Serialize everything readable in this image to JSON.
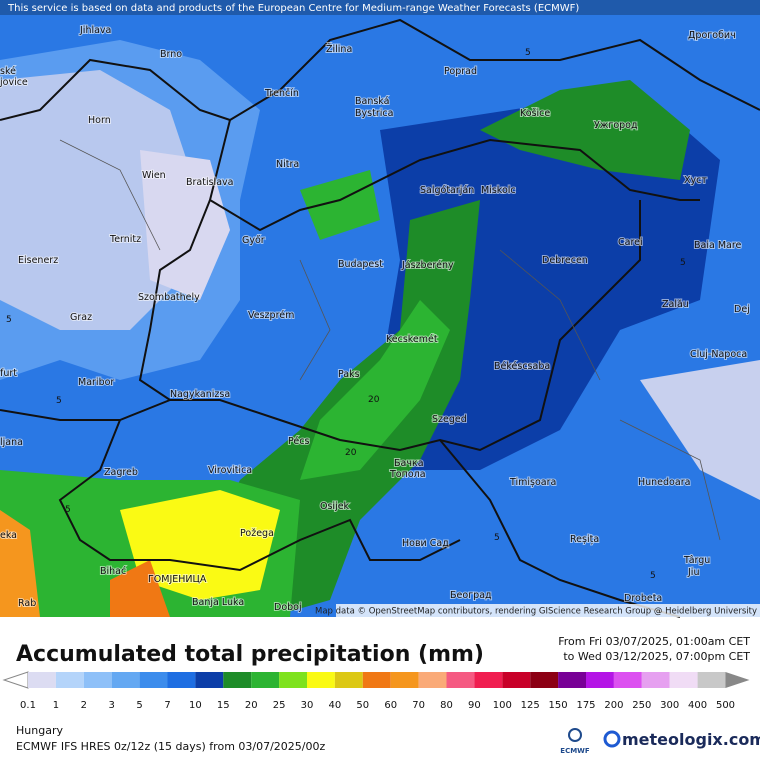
{
  "header": {
    "notice": "This service is based on data and products of the European Centre for Medium-range Weather Forecasts (ECMWF)"
  },
  "map": {
    "cities": [
      "Jihlava",
      "Brno",
      "Žilina",
      "Poprad",
      "Дрогобич",
      "Trenčín",
      "Banská",
      "Bystrica",
      "Košice",
      "Ужгород",
      "Horn",
      "Nitra",
      "Salgótarján",
      "Miskolc",
      "Хуст",
      "Wien",
      "Bratislava",
      "Ternitz",
      "Győr",
      "Carei",
      "Baia Mare",
      "Eisenerz",
      "Budapest",
      "Jászberény",
      "Debrecen",
      "Szombathely",
      "Zalău",
      "Graz",
      "Veszprém",
      "Dej",
      "Kecskemét",
      "Cluj-Napoca",
      "Maribor",
      "Paks",
      "Békéscsaba",
      "Nagykanizsa",
      "Szeged",
      "Pécs",
      "ljana",
      "Zagreb",
      "Virovitica",
      "Бачка",
      "Топола",
      "Timișoara",
      "Hunedoara",
      "Osijek",
      "Požega",
      "Нови Сад",
      "Reșița",
      "Târgu",
      "Jiu",
      "ГОМЈЕНИЦА",
      "Bihać",
      "Banja Luka",
      "Doboj",
      "Београд",
      "Drobeta",
      "ské",
      "jovice",
      "furt",
      "eka",
      "Rab"
    ],
    "contour_labels": [
      "5",
      "5",
      "5",
      "5",
      "5",
      "20",
      "20",
      "5",
      "5"
    ],
    "attribution": "Map data © OpenStreetMap contributors, rendering GIScience Research Group @ Heidelberg University"
  },
  "legend": {
    "title": "Accumulated total precipitation (mm)",
    "period_from": "From Fri 03/07/2025, 01:00am CET",
    "period_to": "to Wed 03/12/2025, 07:00pm CET",
    "ticks": [
      0.1,
      1,
      2,
      3,
      5,
      7,
      10,
      15,
      20,
      25,
      30,
      40,
      50,
      60,
      70,
      80,
      90,
      100,
      125,
      150,
      175,
      200,
      250,
      300,
      400,
      500
    ],
    "colors": [
      "#dcdcf2",
      "#b4d4fa",
      "#8ec0f8",
      "#64a8f2",
      "#3c8cec",
      "#1e6ee2",
      "#0c3ea8",
      "#1e8c28",
      "#2cb432",
      "#7ee21e",
      "#fafa14",
      "#dcc814",
      "#f07814",
      "#f5961e",
      "#faaa78",
      "#f55a82",
      "#f01e50",
      "#c80028",
      "#8c0014",
      "#780096",
      "#b414e6",
      "#dc50f0",
      "#e6a0f0",
      "#f0dcf5",
      "#c8c8c8"
    ]
  },
  "footer": {
    "region": "Hungary",
    "model": "ECMWF IFS HRES 0z/12z (15 days) from 03/07/2025/00z",
    "ecmwf": "ECMWF",
    "brand": "meteologix.com"
  }
}
